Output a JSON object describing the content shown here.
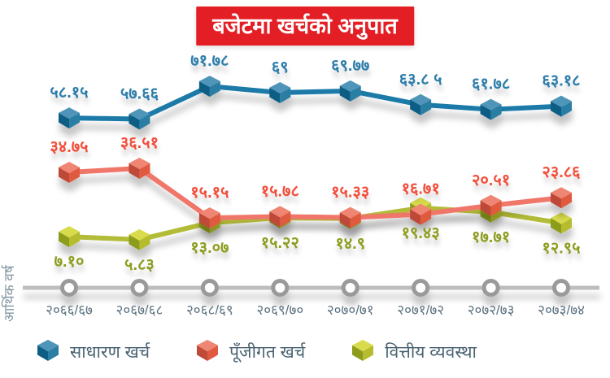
{
  "chart_data": {
    "type": "line",
    "title": "बजेटमा खर्चको अनुपात",
    "title_bg_color": "#e41e25",
    "title_text_color": "#ffffff",
    "axis_label": "आर्थिक वर्ष",
    "categories": [
      "२०६६/६७",
      "२०६७/६८",
      "२०६८/६९",
      "२०६९/७०",
      "२०७०/७१",
      "२०७१/७२",
      "२०७२/७३",
      "२०७३/७४"
    ],
    "series": [
      {
        "name": "साधारण खर्च",
        "values": [
          58.15,
          57.66,
          71.78,
          69,
          69.77,
          63.85,
          61.78,
          63.18
        ],
        "labels": [
          "५८.१५",
          "५७.६६",
          "७१.७८",
          "६९",
          "६९.७७",
          "६३.८ ५",
          "६१.७८",
          "६३.१८"
        ],
        "label_position": "above",
        "colors": {
          "line": "#1a7aa8",
          "top": "#4f95b9",
          "left": "#0e5d85",
          "right": "#2b7da3",
          "label": "#2e7eab"
        }
      },
      {
        "name": "पूँजीगत खर्च",
        "values": [
          34.75,
          36.51,
          15.15,
          15.78,
          15.33,
          16.71,
          20.51,
          23.86
        ],
        "labels": [
          "३४.७५",
          "३६.५१",
          "१५.१५",
          "१५.७८",
          "१५.३३",
          "१६.७१",
          "२०.५१",
          "२३.८६"
        ],
        "label_position": "above",
        "colors": {
          "line": "#f0766a",
          "top": "#ef8673",
          "left": "#bf4a37",
          "right": "#e05a41",
          "label": "#f2503c"
        }
      },
      {
        "name": "वित्तीय व्यवस्था",
        "values": [
          7.1,
          5.83,
          13.07,
          15.22,
          14.9,
          19.43,
          17.71,
          12.95
        ],
        "labels": [
          "७.१०",
          "५.८३",
          "१३.०७",
          "१५.२२",
          "१४.९",
          "१९.४३",
          "१७.७१",
          "१२.९५"
        ],
        "label_position": "below",
        "colors": {
          "line": "#b3bc37",
          "top": "#d8db4b",
          "left": "#8e9c1c",
          "right": "#b5bc2e",
          "label": "#8f9d20"
        }
      }
    ],
    "axis": {
      "timeline_color": "#bdbdbd",
      "ring_color": "#9a9a9a",
      "tick_label_color": "#5c7280",
      "axis_label_color": "#8295a0"
    },
    "ylim": [
      0,
      80
    ],
    "grid": false,
    "legend_position": "bottom"
  }
}
